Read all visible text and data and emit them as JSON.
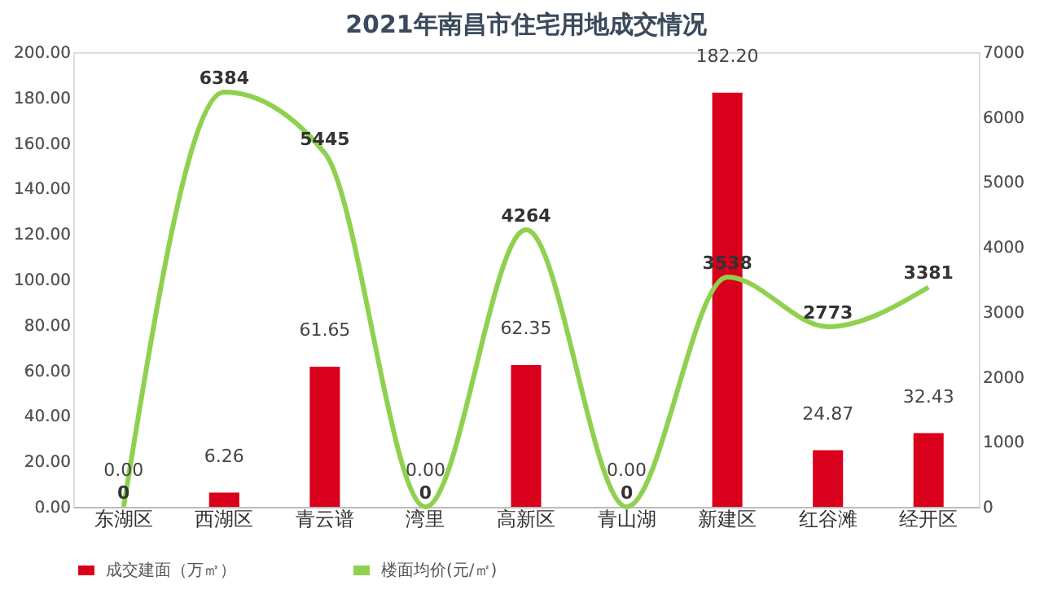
{
  "chart_data": {
    "type": "bar",
    "title": "2021年南昌市住宅用地成交情况",
    "categories": [
      "东湖区",
      "西湖区",
      "青云谱",
      "湾里",
      "高新区",
      "青山湖",
      "新建区",
      "红谷滩",
      "经开区"
    ],
    "series": [
      {
        "name": "成交建面（万㎡）",
        "color": "#d9001b",
        "values": [
          0.0,
          6.26,
          61.65,
          0.0,
          62.35,
          0.0,
          182.2,
          24.87,
          32.43
        ],
        "value_labels": [
          "0.00",
          "6.26",
          "61.65",
          "0.00",
          "62.35",
          "0.00",
          "182.20",
          "24.87",
          "32.43"
        ]
      },
      {
        "name": "楼面均价(元/㎡)",
        "type": "line",
        "axis": "y2",
        "color": "#8fd14f",
        "values": [
          0,
          6384,
          5445,
          0,
          4264,
          0,
          3538,
          2773,
          3381
        ]
      }
    ],
    "ylim": [
      0,
      200
    ],
    "yticks": [
      {
        "value": 0,
        "label": "0.00"
      },
      {
        "value": 20,
        "label": "20.00"
      },
      {
        "value": 40,
        "label": "40.00"
      },
      {
        "value": 60,
        "label": "60.00"
      },
      {
        "value": 80,
        "label": "80.00"
      },
      {
        "value": 100,
        "label": "100.00"
      },
      {
        "value": 120,
        "label": "120.00"
      },
      {
        "value": 140,
        "label": "140.00"
      },
      {
        "value": 160,
        "label": "160.00"
      },
      {
        "value": 180,
        "label": "180.00"
      },
      {
        "value": 200,
        "label": "200.00"
      }
    ],
    "y2lim": [
      0,
      7000
    ],
    "y2ticks": [
      0,
      1000,
      2000,
      3000,
      4000,
      5000,
      6000,
      7000
    ],
    "data_labels": true,
    "legend": "bottom",
    "grid": false
  }
}
